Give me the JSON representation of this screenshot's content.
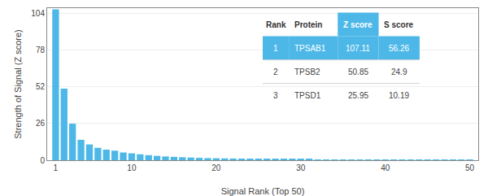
{
  "chart_data": {
    "type": "bar",
    "x": [
      1,
      2,
      3,
      4,
      5,
      6,
      7,
      8,
      9,
      10,
      11,
      12,
      13,
      14,
      15,
      16,
      17,
      18,
      19,
      20,
      21,
      22,
      23,
      24,
      25,
      26,
      27,
      28,
      29,
      30,
      31,
      32,
      33,
      34,
      35,
      36,
      37,
      38,
      39,
      40,
      41,
      42,
      43,
      44,
      45,
      46,
      47,
      48,
      49,
      50
    ],
    "values": [
      107.11,
      50.85,
      25.95,
      14.5,
      11.2,
      8.8,
      7.5,
      6.8,
      5.5,
      4.9,
      4.2,
      3.6,
      3.1,
      2.7,
      2.4,
      2.1,
      1.9,
      1.7,
      1.5,
      1.4,
      1.3,
      1.2,
      1.1,
      1.0,
      0.9,
      0.85,
      0.8,
      0.75,
      0.7,
      0.65,
      0.6,
      0.58,
      0.55,
      0.52,
      0.5,
      0.48,
      0.46,
      0.44,
      0.42,
      0.4,
      0.38,
      0.36,
      0.34,
      0.32,
      0.3,
      0.28,
      0.26,
      0.24,
      0.22,
      0.2
    ],
    "color": "#4db8e8",
    "xlabel": "Signal Rank (Top 50)",
    "ylabel": "Strength of Signal (Z score)",
    "xlim": [
      0,
      51
    ],
    "ylim": [
      0,
      108
    ],
    "xticks": [
      1,
      10,
      20,
      30,
      40,
      50
    ],
    "yticks": [
      0,
      26,
      52,
      78,
      104
    ],
    "grid": true,
    "table": [
      [
        "Rank",
        "Protein",
        "Z score",
        "S score"
      ],
      [
        "1",
        "TPSAB1",
        "107.11",
        "56.26"
      ],
      [
        "2",
        "TPSB2",
        "50.85",
        "24.9"
      ],
      [
        "3",
        "TPSD1",
        "25.95",
        "10.19"
      ]
    ]
  }
}
